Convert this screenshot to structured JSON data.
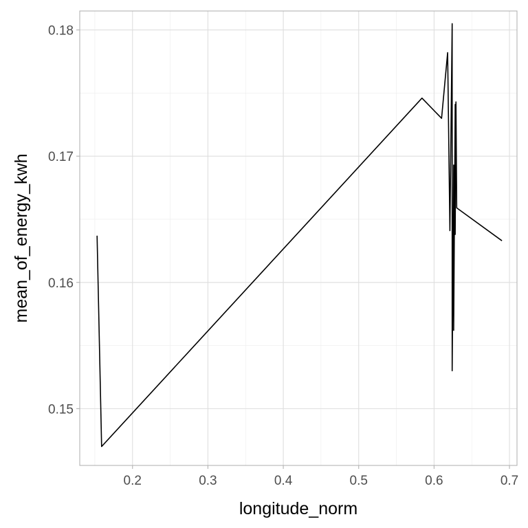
{
  "chart_data": {
    "type": "line",
    "title": "",
    "xlabel": "longitude_norm",
    "ylabel": "mean_of_energy_kwh",
    "xlim": [
      0.13,
      0.71
    ],
    "ylim": [
      0.1455,
      0.1815
    ],
    "x_ticks": [
      0.2,
      0.3,
      0.4,
      0.5,
      0.6,
      0.7
    ],
    "x_tick_labels": [
      "0.2",
      "0.3",
      "0.4",
      "0.5",
      "0.6",
      "0.7"
    ],
    "y_ticks": [
      0.15,
      0.16,
      0.17,
      0.18
    ],
    "y_tick_labels": [
      "0.15",
      "0.16",
      "0.17",
      "0.18"
    ],
    "grid": true,
    "colors": {
      "line": "#000000",
      "grid": "#dedede",
      "border": "#b3b3b3"
    },
    "series": [
      {
        "x": [
          0.153,
          0.159,
          0.584,
          0.61,
          0.618,
          0.621,
          0.624,
          0.624,
          0.626,
          0.626,
          0.628,
          0.628,
          0.629,
          0.63,
          0.69
        ],
        "y": [
          0.1637,
          0.147,
          0.1746,
          0.173,
          0.1782,
          0.1641,
          0.1805,
          0.153,
          0.1693,
          0.1562,
          0.1741,
          0.1638,
          0.1743,
          0.1659,
          0.1633
        ]
      }
    ]
  }
}
